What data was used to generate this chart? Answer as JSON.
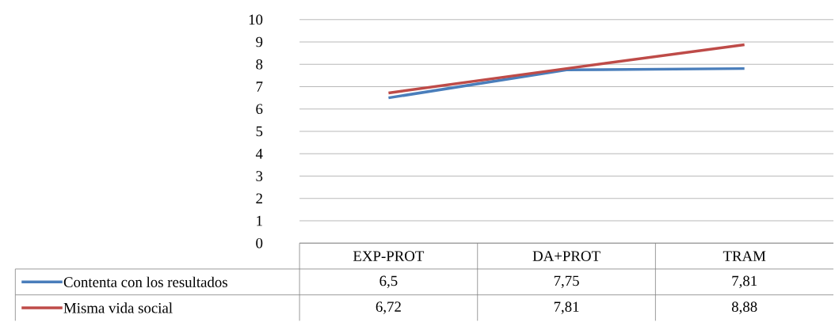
{
  "chart_data": {
    "type": "line",
    "categories": [
      "EXP-PROT",
      "DA+PROT",
      "TRAM"
    ],
    "series": [
      {
        "name": "Contenta con los resultados",
        "color": "#4a7ebb",
        "values": [
          6.5,
          7.75,
          7.81
        ],
        "value_labels": [
          "6,5",
          "7,75",
          "7,81"
        ]
      },
      {
        "name": "Misma vida social",
        "color": "#be4b48",
        "values": [
          6.72,
          7.81,
          8.88
        ],
        "value_labels": [
          "6,72",
          "7,81",
          "8,88"
        ]
      }
    ],
    "ylim": [
      0,
      10
    ],
    "yticks": [
      0,
      1,
      2,
      3,
      4,
      5,
      6,
      7,
      8,
      9,
      10
    ],
    "grid": "y",
    "legend": "bottom"
  }
}
